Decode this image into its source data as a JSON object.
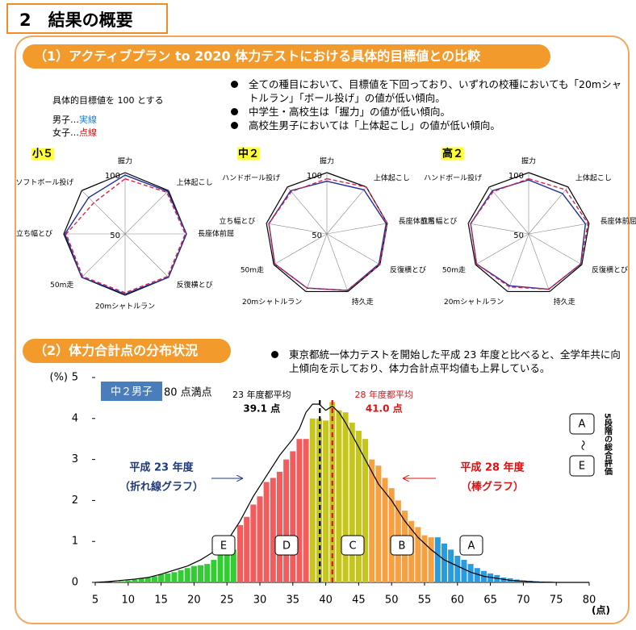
{
  "header": {
    "title": "2　結果の概要"
  },
  "section1": {
    "title": "（1）アクティブプラン to 2020 体力テストにおける具体的目標値との比較",
    "bullets": [
      "全ての種目において、目標値を下回っており、いずれの校種においても「20mシャトルラン」「ボール投げ」の値が低い傾向。",
      "中学生・高校生は「握力」の値が低い傾向。",
      "高校生男子においては「上体起こし」の値が低い傾向。"
    ],
    "note": {
      "title": "具体的目標値を 100 とする",
      "boys": "男子…",
      "boys_line": "実線",
      "girls": "女子…",
      "girls_line": "点線"
    }
  },
  "section2": {
    "title": "（2）体力合計点の分布状況",
    "bullets": [
      "東京都統一体力テストを開始した平成 23 年度と比べると、全学年共に向上傾向を示しており、体力合計点平均値も上昇している。"
    ]
  },
  "chart_data": [
    {
      "type": "radar",
      "title": "小５",
      "categories": [
        "握力",
        "上体起こし",
        "長座体前屈",
        "反復横とび",
        "20mシャトルラン",
        "50m走",
        "立ち幅とび",
        "ソフトボール投げ"
      ],
      "rlim": [
        50,
        100
      ],
      "rticks": [
        50,
        100
      ],
      "series": [
        {
          "color": "#1f2f9c",
          "line": "solid",
          "values": [
            98,
            99,
            100,
            100,
            99,
            100,
            99,
            92
          ]
        },
        {
          "color": "#e0204a",
          "line": "dashed",
          "values": [
            95,
            98,
            99,
            99,
            98,
            99,
            98,
            86
          ]
        }
      ]
    },
    {
      "type": "radar",
      "title": "中２",
      "categories": [
        "握力",
        "上体起こし",
        "長座体前屈",
        "反復横とび",
        "持久走",
        "20mシャトルラン",
        "50m走",
        "立ち幅とび",
        "ハンドボール投げ"
      ],
      "rlim": [
        50,
        100
      ],
      "rticks": [
        50,
        100
      ],
      "series": [
        {
          "color": "#1f2f9c",
          "line": "solid",
          "values": [
            93,
            97,
            99,
            99,
            99,
            97,
            99,
            98,
            96
          ]
        },
        {
          "color": "#e0204a",
          "line": "dashed",
          "values": [
            95,
            100,
            100,
            100,
            99,
            97,
            99,
            98,
            95
          ]
        }
      ]
    },
    {
      "type": "radar",
      "title": "高２",
      "categories": [
        "握力",
        "上体起こし",
        "長座体前屈",
        "反復横とび",
        "持久走",
        "20mシャトルラン",
        "50m走",
        "立ち幅とび",
        "ハンドボール投げ"
      ],
      "rlim": [
        50,
        100
      ],
      "rticks": [
        50,
        100
      ],
      "series": [
        {
          "color": "#1f2f9c",
          "line": "solid",
          "values": [
            94,
            93,
            97,
            99,
            98,
            95,
            99,
            98,
            96
          ]
        },
        {
          "color": "#e0204a",
          "line": "dashed",
          "values": [
            95,
            97,
            99,
            99,
            98,
            96,
            99,
            98,
            95
          ]
        }
      ]
    },
    {
      "type": "bar",
      "label": "中２男子",
      "note": "80 点満点",
      "ylabel": "(%)",
      "xlabel": "(点)",
      "xlim": [
        5,
        80
      ],
      "xticks": [
        5,
        10,
        15,
        20,
        25,
        30,
        35,
        40,
        45,
        50,
        55,
        60,
        65,
        70,
        75,
        80
      ],
      "ylim": [
        0,
        5
      ],
      "yticks": [
        0,
        1,
        2,
        3,
        4,
        5
      ],
      "series": [
        {
          "name": "E",
          "color": "#33cc33",
          "x": [
            8,
            9,
            10,
            11,
            12,
            13,
            14,
            15,
            16,
            17,
            18,
            19,
            20,
            21,
            22,
            23,
            24,
            25,
            26
          ],
          "values": [
            0.02,
            0.03,
            0.05,
            0.07,
            0.1,
            0.12,
            0.15,
            0.2,
            0.22,
            0.25,
            0.3,
            0.35,
            0.4,
            0.42,
            0.45,
            0.55,
            0.7,
            0.72,
            0.8
          ]
        },
        {
          "name": "D",
          "color": "#f25c5c",
          "x": [
            27,
            28,
            29,
            30,
            31,
            32,
            33,
            34,
            35,
            36,
            37
          ],
          "values": [
            1.4,
            1.6,
            1.9,
            2.1,
            2.45,
            2.55,
            2.7,
            3.0,
            3.2,
            3.5,
            3.5
          ]
        },
        {
          "name": "C",
          "color": "#c5c51c",
          "x": [
            38,
            39,
            40,
            41,
            42,
            43,
            44,
            45,
            46
          ],
          "values": [
            4.0,
            4.0,
            3.95,
            4.4,
            4.2,
            4.15,
            3.9,
            3.7,
            3.5
          ]
        },
        {
          "name": "B",
          "color": "#f5a142",
          "x": [
            47,
            48,
            49,
            50,
            51,
            52,
            53,
            54,
            55,
            56
          ],
          "values": [
            3.0,
            2.85,
            2.55,
            2.3,
            2.0,
            1.75,
            1.5,
            1.35,
            1.15,
            1.1
          ]
        },
        {
          "name": "A",
          "color": "#2b9be0",
          "x": [
            57,
            58,
            59,
            60,
            61,
            62,
            63,
            64,
            65,
            66,
            67,
            68,
            69,
            70,
            71,
            72,
            73,
            74,
            75,
            76,
            77,
            78,
            79,
            80
          ],
          "values": [
            1.1,
            0.95,
            0.8,
            0.65,
            0.55,
            0.45,
            0.35,
            0.28,
            0.22,
            0.18,
            0.12,
            0.1,
            0.07,
            0.05,
            0.04,
            0.03,
            0.02,
            0.02,
            0.01,
            0.01,
            0.01,
            0.01,
            0,
            0
          ]
        },
        {
          "type": "line",
          "color": "#000000",
          "x": [
            5,
            7,
            9,
            11,
            13,
            15,
            17,
            19,
            21,
            23,
            25,
            27,
            29,
            31,
            33,
            35,
            36,
            37,
            38,
            39,
            40,
            41,
            42,
            43,
            44,
            45,
            46,
            47,
            48,
            50,
            52,
            54,
            56,
            58,
            60,
            62,
            64,
            66,
            68,
            70,
            72,
            75,
            80
          ],
          "values": [
            0,
            0.02,
            0.05,
            0.08,
            0.12,
            0.2,
            0.3,
            0.4,
            0.55,
            0.75,
            1.0,
            1.5,
            2.1,
            2.6,
            3.1,
            3.5,
            3.75,
            4.15,
            4.35,
            4.35,
            4.2,
            4.3,
            4.15,
            3.9,
            3.6,
            3.3,
            3.0,
            2.7,
            2.4,
            2.0,
            1.5,
            1.1,
            0.8,
            0.55,
            0.4,
            0.25,
            0.15,
            0.1,
            0.05,
            0.03,
            0.01,
            0,
            0
          ]
        }
      ],
      "means": [
        {
          "title": "23 年度都平均",
          "value": 39.1,
          "label": "39.1 点",
          "color": "#000000"
        },
        {
          "title": "28 年度都平均",
          "value": 41.0,
          "label": "41.0 点",
          "color": "#e01010"
        }
      ],
      "annotations": [
        {
          "text": "平成 23 年度",
          "color": "#1f3a7a"
        },
        {
          "text": "（折れ線グラフ）",
          "color": "#1f3a7a"
        },
        {
          "text": "平成 28 年度",
          "color": "#e01010"
        },
        {
          "text": "（棒グラフ）",
          "color": "#e01010"
        }
      ],
      "grade_scale": {
        "top": "A",
        "sep": "〜",
        "bottom": "E",
        "title": "5段階の総合評価"
      }
    }
  ]
}
